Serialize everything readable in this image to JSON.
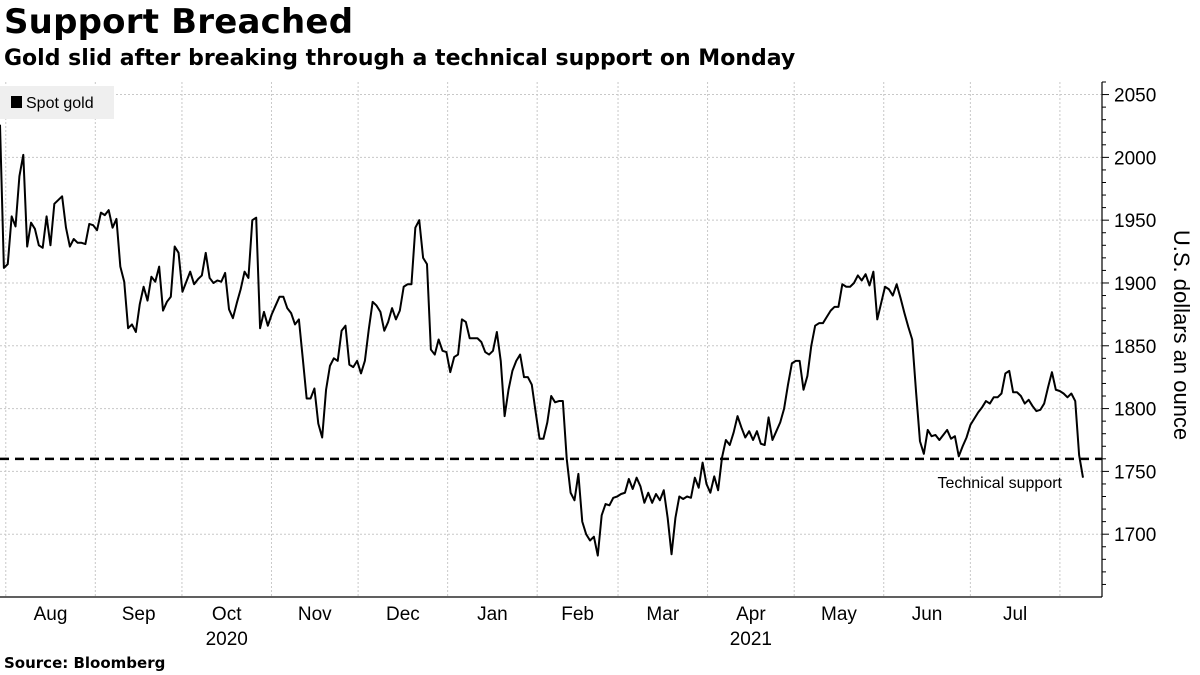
{
  "header": {
    "title": "Support Breached",
    "subtitle": "Gold slid after breaking through a technical support on Monday"
  },
  "footer": {
    "source": "Source: Bloomberg"
  },
  "chart_data": {
    "type": "line",
    "title": "Support Breached",
    "subtitle": "Gold slid after breaking through a technical support on Monday",
    "xlabel": "",
    "ylabel": "U.S. dollars an ounce",
    "ylim": [
      1650,
      2060
    ],
    "y_ticks": [
      1700,
      1750,
      1800,
      1850,
      1900,
      1950,
      2000,
      2050
    ],
    "y_axis_side": "right",
    "grid": true,
    "legend_position": "top-left",
    "x_months": [
      "Aug",
      "Sep",
      "Oct",
      "Nov",
      "Dec",
      "Jan",
      "Feb",
      "Mar",
      "Apr",
      "May",
      "Jun",
      "Jul"
    ],
    "x_years": [
      {
        "label": "2020",
        "under_month": "Oct"
      },
      {
        "label": "2021",
        "under_month": "Apr"
      }
    ],
    "series": [
      {
        "name": "Spot gold",
        "color": "#000000",
        "x_start": "2020-07-30",
        "x_end": "2021-08-09",
        "values": [
          2026,
          1912,
          1915,
          1953,
          1945,
          1985,
          2002,
          1929,
          1948,
          1943,
          1930,
          1928,
          1953,
          1930,
          1963,
          1966,
          1969,
          1944,
          1929,
          1935,
          1932,
          1932,
          1931,
          1947,
          1946,
          1942,
          1956,
          1954,
          1958,
          1944,
          1951,
          1913,
          1901,
          1864,
          1867,
          1861,
          1883,
          1897,
          1886,
          1905,
          1901,
          1913,
          1878,
          1885,
          1889,
          1929,
          1924,
          1893,
          1901,
          1909,
          1899,
          1903,
          1906,
          1924,
          1904,
          1900,
          1902,
          1901,
          1908,
          1879,
          1872,
          1884,
          1895,
          1909,
          1904,
          1950,
          1952,
          1864,
          1877,
          1866,
          1875,
          1882,
          1889,
          1889,
          1880,
          1876,
          1867,
          1871,
          1840,
          1808,
          1808,
          1816,
          1788,
          1777,
          1815,
          1834,
          1840,
          1838,
          1862,
          1866,
          1835,
          1833,
          1838,
          1828,
          1838,
          1863,
          1885,
          1882,
          1877,
          1862,
          1869,
          1880,
          1871,
          1878,
          1897,
          1899,
          1899,
          1944,
          1950,
          1920,
          1915,
          1847,
          1843,
          1855,
          1846,
          1845,
          1829,
          1841,
          1843,
          1871,
          1869,
          1856,
          1856,
          1856,
          1853,
          1845,
          1843,
          1846,
          1861,
          1838,
          1794,
          1815,
          1830,
          1838,
          1843,
          1825,
          1825,
          1819,
          1797,
          1776,
          1776,
          1789,
          1810,
          1805,
          1806,
          1806,
          1760,
          1733,
          1727,
          1748,
          1710,
          1700,
          1695,
          1698,
          1683,
          1715,
          1724,
          1723,
          1729,
          1730,
          1732,
          1733,
          1744,
          1736,
          1745,
          1738,
          1725,
          1733,
          1725,
          1732,
          1727,
          1735,
          1713,
          1684,
          1713,
          1730,
          1728,
          1730,
          1729,
          1745,
          1737,
          1757,
          1740,
          1733,
          1746,
          1735,
          1761,
          1775,
          1771,
          1781,
          1794,
          1785,
          1777,
          1782,
          1775,
          1782,
          1772,
          1771,
          1793,
          1775,
          1782,
          1789,
          1800,
          1819,
          1836,
          1838,
          1838,
          1815,
          1826,
          1850,
          1866,
          1868,
          1868,
          1873,
          1878,
          1881,
          1881,
          1899,
          1897,
          1897,
          1900,
          1906,
          1902,
          1907,
          1898,
          1909,
          1871,
          1884,
          1897,
          1895,
          1890,
          1899,
          1888,
          1876,
          1865,
          1855,
          1813,
          1774,
          1764,
          1783,
          1778,
          1779,
          1775,
          1779,
          1783,
          1776,
          1778,
          1762,
          1770,
          1777,
          1787,
          1792,
          1797,
          1801,
          1806,
          1804,
          1809,
          1809,
          1812,
          1828,
          1830,
          1813,
          1813,
          1810,
          1804,
          1807,
          1802,
          1798,
          1799,
          1804,
          1817,
          1829,
          1815,
          1814,
          1812,
          1809,
          1812,
          1806,
          1763,
          1745
        ]
      }
    ],
    "reference_lines": [
      {
        "y": 1760,
        "style": "dashed",
        "label": "Technical support"
      }
    ]
  }
}
